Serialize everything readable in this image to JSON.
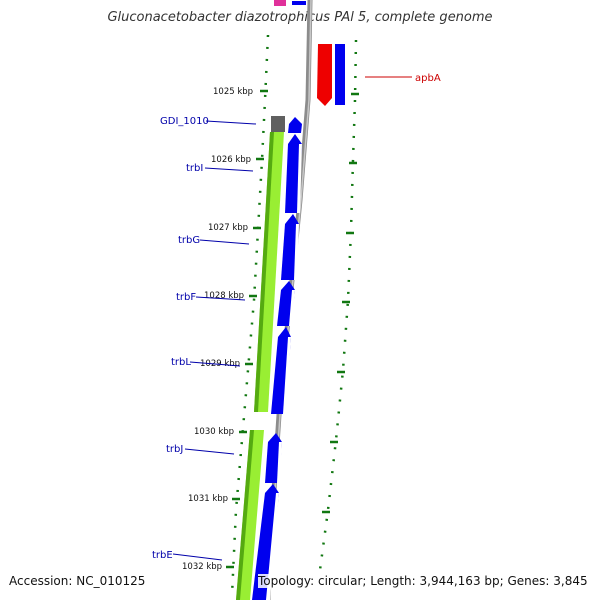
{
  "title": "Gluconacetobacter diazotrophicus PAl 5, complete genome",
  "footer": {
    "accession": "Accession: NC_010125",
    "topology": "Topology: circular; Length: 3,944,163 bp; Genes: 3,845"
  },
  "colors": {
    "backbone": "#8c8c8c",
    "gene_blue": "#0000ee",
    "gene_red": "#ee0000",
    "feature_green": "#99ee33",
    "feature_dark_green": "#55aa11",
    "pseudo_gray": "#606060",
    "tick_green": "#117711",
    "label_blue": "#0000aa",
    "label_red": "#cc0000"
  },
  "scale_labels": [
    "1025 kbp",
    "1026 kbp",
    "1027 kbp",
    "1028 kbp",
    "1029 kbp",
    "1030 kbp",
    "1031 kbp",
    "1032 kbp"
  ],
  "genes": [
    {
      "name": "apbA",
      "strand": "plus-red"
    },
    {
      "name": "GDI_1010",
      "strand": "pseudo"
    },
    {
      "name": "trbI",
      "strand": "plus"
    },
    {
      "name": "trbG",
      "strand": "plus"
    },
    {
      "name": "trbF",
      "strand": "plus"
    },
    {
      "name": "trbL",
      "strand": "plus"
    },
    {
      "name": "trbJ",
      "strand": "plus"
    },
    {
      "name": "trbE",
      "strand": "plus"
    }
  ]
}
